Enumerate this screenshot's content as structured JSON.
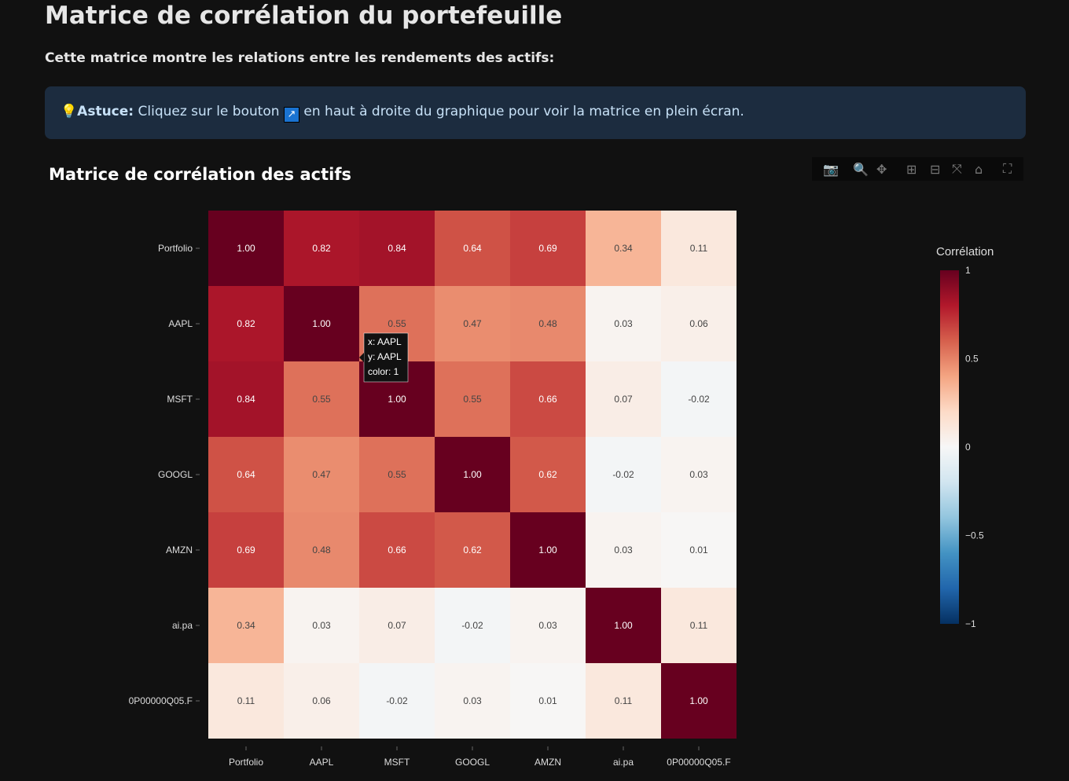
{
  "page": {
    "title": "Matrice de corrélation du portefeuille",
    "subtitle": "Cette matrice montre les relations entre les rendements des actifs:",
    "tip_bold": "Astuce:",
    "tip_before": " Cliquez sur le bouton ",
    "tip_button": "↗",
    "tip_after": " en haut à droite du graphique pour voir la matrice en plein écran."
  },
  "modebar": [
    "camera-icon",
    "zoom-icon",
    "pan-icon",
    "zoom-in-icon",
    "zoom-out-icon",
    "autoscale-icon",
    "home-icon",
    "fullscreen-icon"
  ],
  "tooltip": {
    "x": "x: AAPL",
    "y": "y: AAPL",
    "color": "color: 1"
  },
  "chart_data": {
    "type": "heatmap",
    "title": "Matrice de corrélation des actifs",
    "x": [
      "Portfolio",
      "AAPL",
      "MSFT",
      "GOOGL",
      "AMZN",
      "ai.pa",
      "0P00000Q05.F"
    ],
    "y": [
      "Portfolio",
      "AAPL",
      "MSFT",
      "GOOGL",
      "AMZN",
      "ai.pa",
      "0P00000Q05.F"
    ],
    "z": [
      [
        1.0,
        0.82,
        0.84,
        0.64,
        0.69,
        0.34,
        0.11
      ],
      [
        0.82,
        1.0,
        0.55,
        0.47,
        0.48,
        0.03,
        0.06
      ],
      [
        0.84,
        0.55,
        1.0,
        0.55,
        0.66,
        0.07,
        -0.02
      ],
      [
        0.64,
        0.47,
        0.55,
        1.0,
        0.62,
        -0.02,
        0.03
      ],
      [
        0.69,
        0.48,
        0.66,
        0.62,
        1.0,
        0.03,
        0.01
      ],
      [
        0.34,
        0.03,
        0.07,
        -0.02,
        0.03,
        1.0,
        0.11
      ],
      [
        0.11,
        0.06,
        -0.02,
        0.03,
        0.01,
        0.11,
        1.0
      ]
    ],
    "colorscale": "RdBu_r",
    "zrange": [
      -1,
      1
    ],
    "colorbar": {
      "title": "Corrélation",
      "ticks": [
        1,
        0.5,
        0,
        -0.5,
        -1
      ],
      "ticklabels": [
        "1",
        "0.5",
        "0",
        "−0.5",
        "−1"
      ]
    }
  }
}
